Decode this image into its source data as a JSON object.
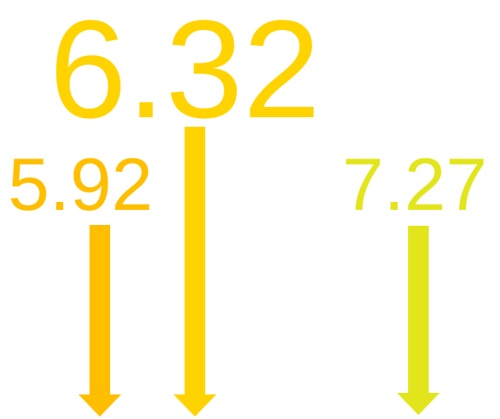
{
  "values": {
    "main": {
      "text": "6.32",
      "color": "#FFD300"
    },
    "left": {
      "text": "5.92",
      "color": "#FFBF00"
    },
    "right": {
      "text": "7.27",
      "color": "#E2E51C"
    }
  },
  "arrows": [
    {
      "name": "arrow-left",
      "color": "#FFBF00",
      "direction": "down"
    },
    {
      "name": "arrow-center",
      "color": "#FFD300",
      "direction": "down"
    },
    {
      "name": "arrow-right",
      "color": "#E2E51C",
      "direction": "down"
    }
  ]
}
